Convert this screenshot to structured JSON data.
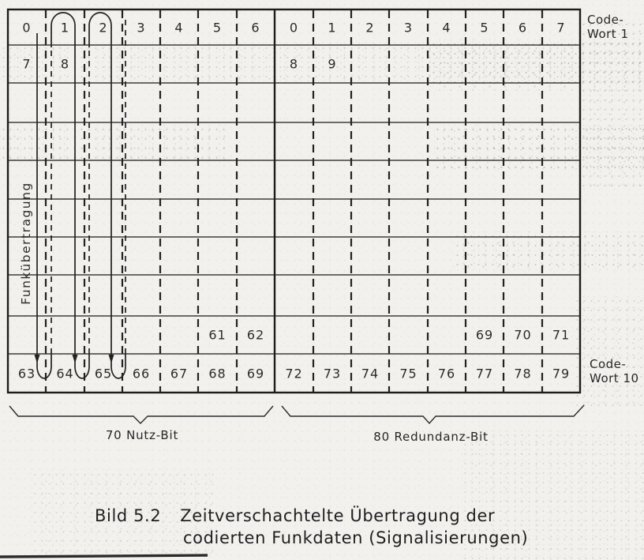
{
  "figure_caption": {
    "number": "Bild 5.2",
    "line1": "Zeitverschachtelte Übertragung der",
    "line2": "codierten Funkdaten (Signalisierungen)"
  },
  "labels": {
    "left_vertical": "Funkübertragung",
    "codeword_top": {
      "line1": "Code-",
      "line2": "Wort 1"
    },
    "codeword_bottom": {
      "line1": "Code-",
      "line2": "Wort 10"
    },
    "brace_left": "70 Nutz-Bit",
    "brace_right": "80 Redundanz-Bit"
  },
  "grid": {
    "rows": 10,
    "left_section_columns": 7,
    "right_section_columns": 8,
    "left_rows": [
      [
        "0",
        "1",
        "2",
        "3",
        "4",
        "5",
        "6"
      ],
      [
        "7",
        "8",
        "",
        "",
        "",
        "",
        ""
      ],
      [
        "",
        "",
        "",
        "",
        "",
        "",
        ""
      ],
      [
        "",
        "",
        "",
        "",
        "",
        "",
        ""
      ],
      [
        "",
        "",
        "",
        "",
        "",
        "",
        ""
      ],
      [
        "",
        "",
        "",
        "",
        "",
        "",
        ""
      ],
      [
        "",
        "",
        "",
        "",
        "",
        "",
        ""
      ],
      [
        "",
        "",
        "",
        "",
        "",
        "",
        ""
      ],
      [
        "",
        "",
        "",
        "",
        "",
        "61",
        "62"
      ],
      [
        "63",
        "64",
        "65",
        "66",
        "67",
        "68",
        "69"
      ]
    ],
    "right_rows": [
      [
        "0",
        "1",
        "2",
        "3",
        "4",
        "5",
        "6",
        "7"
      ],
      [
        "8",
        "9",
        "",
        "",
        "",
        "",
        "",
        ""
      ],
      [
        "",
        "",
        "",
        "",
        "",
        "",
        "",
        ""
      ],
      [
        "",
        "",
        "",
        "",
        "",
        "",
        "",
        ""
      ],
      [
        "",
        "",
        "",
        "",
        "",
        "",
        "",
        ""
      ],
      [
        "",
        "",
        "",
        "",
        "",
        "",
        "",
        ""
      ],
      [
        "",
        "",
        "",
        "",
        "",
        "",
        "",
        ""
      ],
      [
        "",
        "",
        "",
        "",
        "",
        "",
        "",
        ""
      ],
      [
        "",
        "",
        "",
        "",
        "",
        "69",
        "70",
        "71"
      ],
      [
        "72",
        "73",
        "74",
        "75",
        "76",
        "77",
        "78",
        "79"
      ]
    ]
  },
  "colors": {
    "paper": "#f2f1ee",
    "ink": "#1f1f1f"
  }
}
